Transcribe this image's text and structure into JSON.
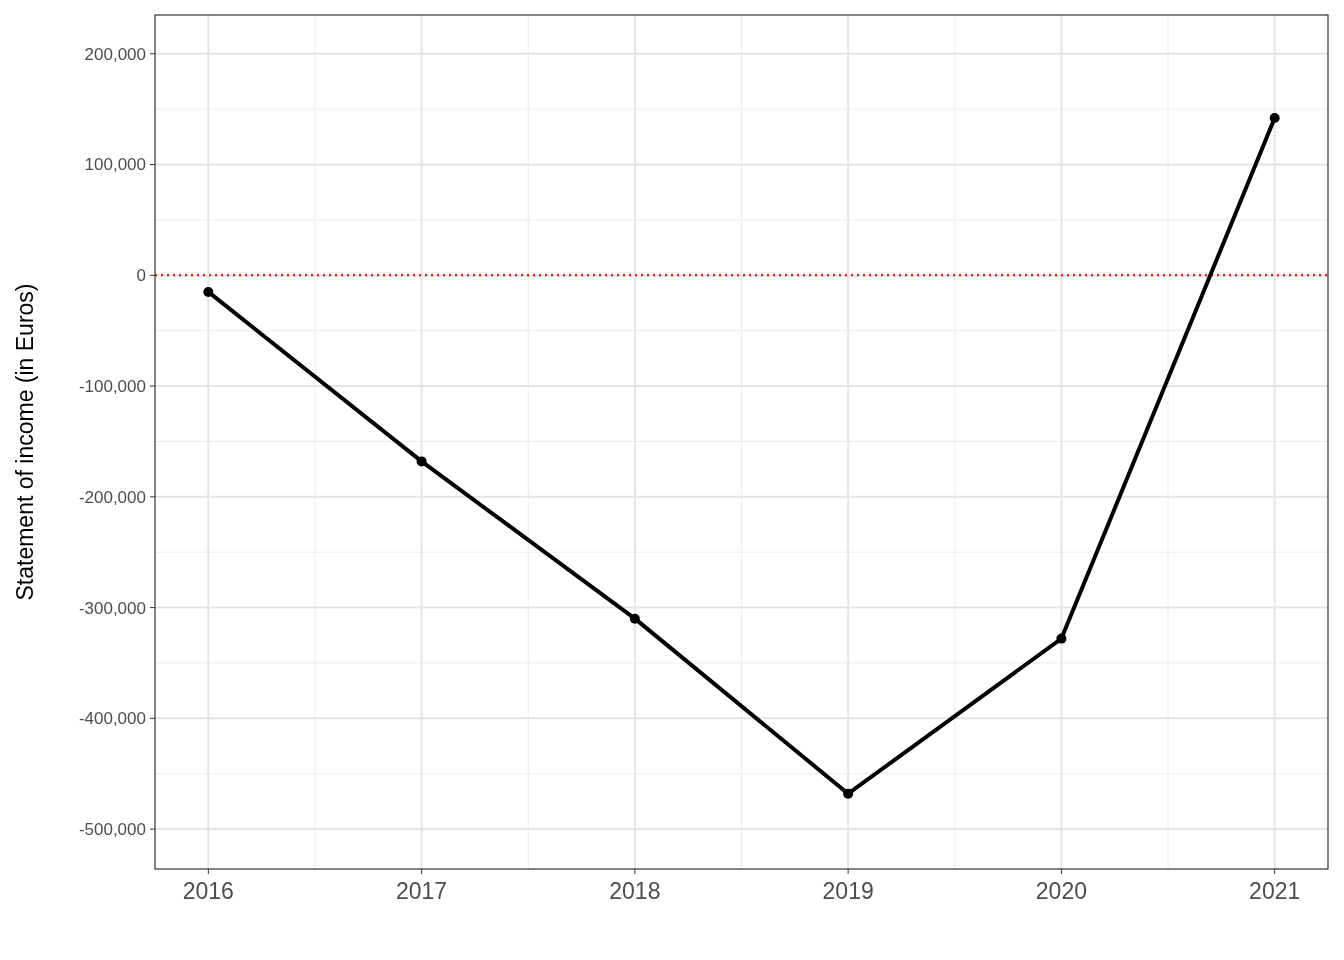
{
  "chart_data": {
    "type": "line",
    "ylabel": "Statement of income (in Euros)",
    "x": [
      2016,
      2017,
      2018,
      2019,
      2020,
      2021
    ],
    "series": [
      {
        "color": "#000000",
        "values": [
          -15000,
          -168000,
          -310000,
          -468000,
          -328000,
          142000
        ]
      }
    ],
    "xlim": [
      2015.75,
      2021.25
    ],
    "xticks": [
      2016,
      2017,
      2018,
      2019,
      2020,
      2021
    ],
    "ylim": [
      -536000,
      235000
    ],
    "yticks": [
      {
        "value": -500000,
        "label": "-500,000"
      },
      {
        "value": -400000,
        "label": "-400,000"
      },
      {
        "value": -300000,
        "label": "-300,000"
      },
      {
        "value": -200000,
        "label": "-200,000"
      },
      {
        "value": -100000,
        "label": "-100,000"
      },
      0,
      {
        "value": 100000,
        "label": "100,000"
      },
      {
        "value": 200000,
        "label": "200,000"
      }
    ],
    "grid": true,
    "marker": "circle",
    "line_style": "solid",
    "ref_lines": [
      {
        "axis": "y",
        "value": 0,
        "color": "#ff0000",
        "line_style": "dotted"
      }
    ]
  }
}
